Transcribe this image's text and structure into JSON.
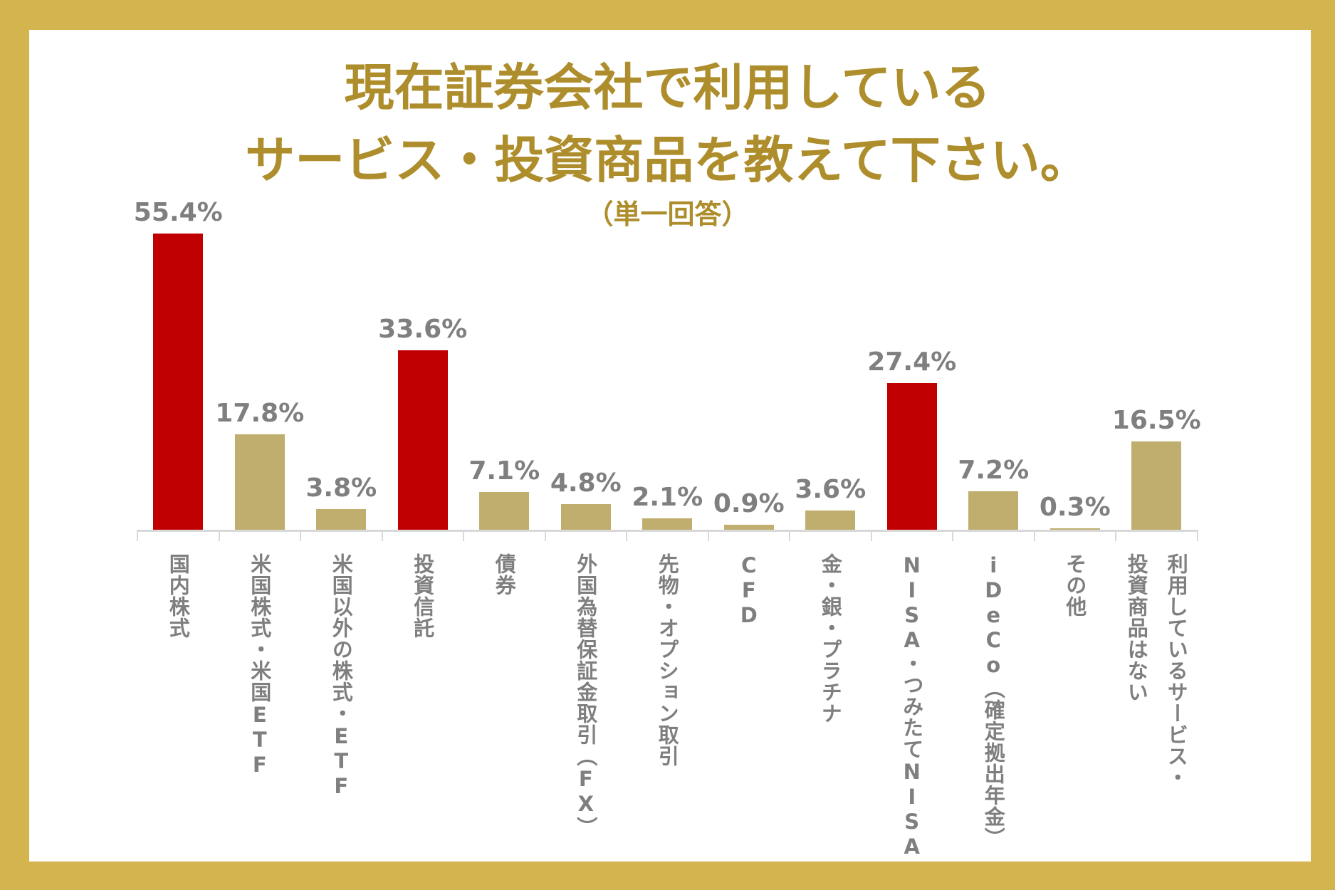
{
  "chart_data": {
    "type": "bar",
    "title_line1": "現在証券会社で利用している",
    "title_line2": "サービス・投資商品を教えて下さい。",
    "subtitle": "（単一回答）",
    "categories": [
      "国内株式",
      "米国株式・米国ETF",
      "米国以外の株式・ETF",
      "投資信託",
      "債券",
      "外国為替保証金取引（FX）",
      "先物・オプション取引",
      "CFD",
      "金・銀・プラチナ",
      "NISA・つみたてNISA",
      "iDeCo（確定拠出年金）",
      "その他",
      "利用しているサービス・\n投資商品はない"
    ],
    "values": [
      55.4,
      17.8,
      3.8,
      33.6,
      7.1,
      4.8,
      2.1,
      0.9,
      3.6,
      27.4,
      7.2,
      0.3,
      16.5
    ],
    "data_labels": [
      "55.4%",
      "17.8%",
      "3.8%",
      "33.6%",
      "7.1%",
      "4.8%",
      "2.1%",
      "0.9%",
      "3.6%",
      "27.4%",
      "7.2%",
      "0.3%",
      "16.5%"
    ],
    "highlighted": [
      true,
      false,
      false,
      true,
      false,
      false,
      false,
      false,
      false,
      true,
      false,
      false,
      false
    ],
    "colors": {
      "highlight": "#c00000",
      "normal": "#bfae6e",
      "border": "#d4b44e",
      "title": "#ae8e2c",
      "label": "#7f7f7f"
    },
    "unit": "%",
    "grid": false,
    "legend": "none"
  }
}
